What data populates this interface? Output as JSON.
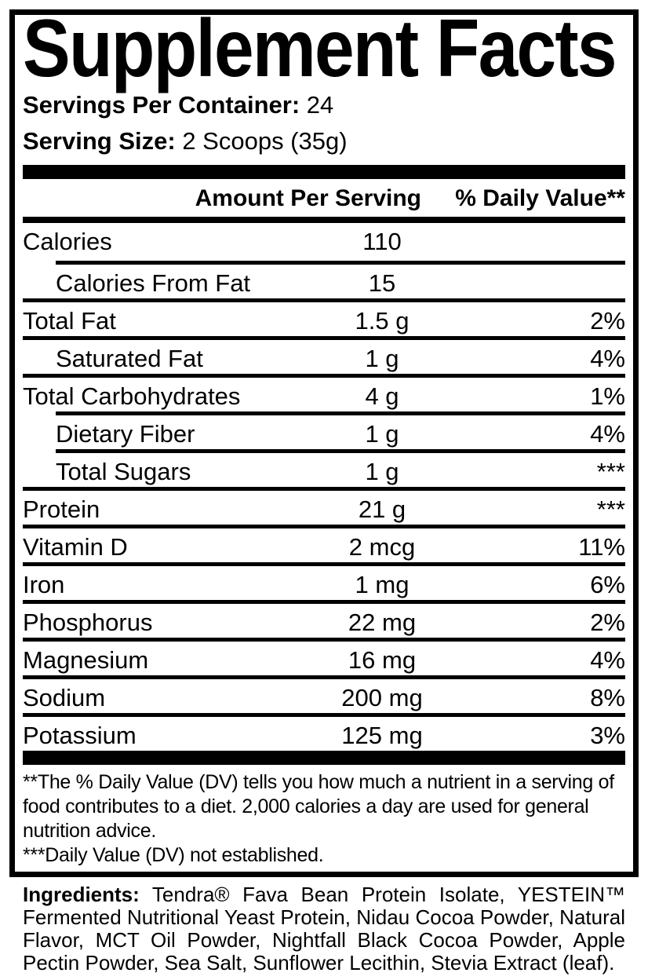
{
  "panel": {
    "title": "Supplement Facts",
    "servings": {
      "label": "Servings Per Container:",
      "value": "24"
    },
    "serving_size": {
      "label": "Serving Size:",
      "value": "2 Scoops (35g)"
    },
    "table": {
      "amount_header": "Amount Per Serving",
      "dv_header": "% Daily Value**",
      "rows": [
        {
          "name": "Calories",
          "amount": "110",
          "dv": "",
          "indent": false,
          "sep": "none"
        },
        {
          "name": "Calories From Fat",
          "amount": "15",
          "dv": "",
          "indent": true,
          "sep": "indent"
        },
        {
          "name": "Total Fat",
          "amount": "1.5 g",
          "dv": "2%",
          "indent": false,
          "sep": "full"
        },
        {
          "name": "Saturated Fat",
          "amount": "1 g",
          "dv": "4%",
          "indent": true,
          "sep": "full"
        },
        {
          "name": "Total Carbohydrates",
          "amount": "4 g",
          "dv": "1%",
          "indent": false,
          "sep": "full"
        },
        {
          "name": "Dietary Fiber",
          "amount": "1 g",
          "dv": "4%",
          "indent": true,
          "sep": "indent"
        },
        {
          "name": "Total Sugars",
          "amount": "1 g",
          "dv": "***",
          "indent": true,
          "sep": "indent"
        },
        {
          "name": "Protein",
          "amount": "21 g",
          "dv": "***",
          "indent": false,
          "sep": "full"
        },
        {
          "name": "Vitamin D",
          "amount": "2 mcg",
          "dv": "11%",
          "indent": false,
          "sep": "full"
        },
        {
          "name": "Iron",
          "amount": "1 mg",
          "dv": "6%",
          "indent": false,
          "sep": "full"
        },
        {
          "name": "Phosphorus",
          "amount": "22 mg",
          "dv": "2%",
          "indent": false,
          "sep": "full"
        },
        {
          "name": "Magnesium",
          "amount": "16 mg",
          "dv": "4%",
          "indent": false,
          "sep": "full"
        },
        {
          "name": "Sodium",
          "amount": "200 mg",
          "dv": "8%",
          "indent": false,
          "sep": "full"
        },
        {
          "name": "Potassium",
          "amount": "125 mg",
          "dv": "3%",
          "indent": false,
          "sep": "full"
        }
      ]
    },
    "footnotes": [
      "**The % Daily Value (DV) tells you how much a nutrient in a serving of food contributes to a diet. 2,000 calories a day are used for general nutrition advice.",
      "***Daily Value (DV) not established."
    ]
  },
  "ingredients": {
    "label": "Ingredients:",
    "text": "Tendra® Fava Bean Protein Isolate, YESTEIN™ Fermented Nutritional Yeast Protein, Nidau Cocoa Powder, Natural Flavor, MCT Oil Powder, Nightfall Black Cocoa Powder, Apple Pectin Powder, Sea Salt, Sunflower Lecithin, Stevia Extract (leaf)."
  },
  "colors": {
    "text": "#000000",
    "background": "#ffffff",
    "rule": "#000000"
  }
}
